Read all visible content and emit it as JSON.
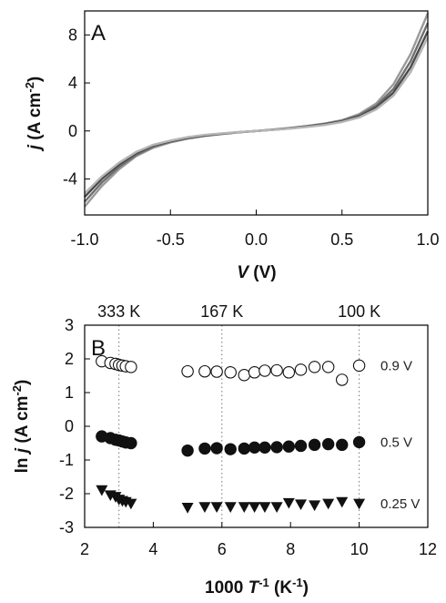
{
  "chart_data": [
    {
      "type": "line",
      "panel_label": "A",
      "xlabel_italic": "V",
      "xlabel_rest": " (V)",
      "ylabel_italic": "j",
      "ylabel_rest": " (A cm",
      "ylabel_sup": "-2",
      "ylabel_close": ")",
      "xlim": [
        -1.0,
        1.0
      ],
      "ylim": [
        -7,
        10
      ],
      "xticks": [
        -1.0,
        -0.5,
        0.0,
        0.5,
        1.0
      ],
      "xtick_labels": [
        "-1.0",
        "-0.5",
        "0.0",
        "0.5",
        "1.0"
      ],
      "yticks": [
        -4,
        0,
        4,
        8
      ],
      "ytick_labels": [
        "-4",
        "0",
        "4",
        "8"
      ],
      "grid": false,
      "x": [
        -1.0,
        -0.9,
        -0.8,
        -0.7,
        -0.6,
        -0.5,
        -0.4,
        -0.3,
        -0.2,
        -0.1,
        0.0,
        0.1,
        0.2,
        0.3,
        0.4,
        0.5,
        0.6,
        0.7,
        0.8,
        0.9,
        1.0
      ],
      "series": [
        {
          "values": [
            -6.3,
            -4.6,
            -3.2,
            -2.1,
            -1.4,
            -0.95,
            -0.65,
            -0.42,
            -0.26,
            -0.12,
            0.0,
            0.12,
            0.26,
            0.42,
            0.62,
            0.9,
            1.4,
            2.3,
            3.9,
            6.4,
            9.8
          ]
        },
        {
          "values": [
            -5.9,
            -4.3,
            -3.0,
            -2.0,
            -1.3,
            -0.9,
            -0.6,
            -0.4,
            -0.24,
            -0.11,
            0.0,
            0.11,
            0.24,
            0.4,
            0.58,
            0.85,
            1.3,
            2.1,
            3.5,
            5.8,
            9.0
          ]
        },
        {
          "values": [
            -5.5,
            -4.0,
            -2.8,
            -1.85,
            -1.2,
            -0.85,
            -0.56,
            -0.36,
            -0.22,
            -0.1,
            0.0,
            0.1,
            0.22,
            0.37,
            0.54,
            0.8,
            1.2,
            1.95,
            3.2,
            5.3,
            8.3
          ]
        },
        {
          "values": [
            -5.2,
            -3.8,
            -2.65,
            -1.75,
            -1.15,
            -0.8,
            -0.52,
            -0.33,
            -0.2,
            -0.09,
            0.0,
            0.09,
            0.2,
            0.34,
            0.5,
            0.75,
            1.12,
            1.8,
            2.95,
            4.9,
            7.8
          ]
        }
      ]
    },
    {
      "type": "scatter",
      "panel_label": "B",
      "xlabel": "1000 ",
      "xlabel_italic": "T",
      "xlabel_sup1": "-1",
      "xlabel_rest": " (K",
      "xlabel_sup2": "-1",
      "xlabel_close": ")",
      "ylabel": "ln ",
      "ylabel_italic": "j",
      "ylabel_rest": " (A cm",
      "ylabel_sup": "-2",
      "ylabel_close": ")",
      "xlim": [
        2,
        12
      ],
      "ylim": [
        -3,
        3
      ],
      "xticks": [
        2,
        4,
        6,
        8,
        10,
        12
      ],
      "xtick_labels": [
        "2",
        "4",
        "6",
        "8",
        "10",
        "12"
      ],
      "yticks": [
        -3,
        -2,
        -1,
        0,
        1,
        2,
        3
      ],
      "ytick_labels": [
        "-3",
        "-2",
        "-1",
        "0",
        "1",
        "2",
        "3"
      ],
      "grid": false,
      "reference_lines": [
        {
          "x": 3.0,
          "label": "333 K"
        },
        {
          "x": 6.0,
          "label": "167 K"
        },
        {
          "x": 10.0,
          "label": "100 K"
        }
      ],
      "series": [
        {
          "name": "0.9 V",
          "marker": "circle-open",
          "x": [
            2.5,
            2.75,
            2.9,
            3.0,
            3.1,
            3.2,
            3.35,
            5.0,
            5.5,
            5.85,
            6.25,
            6.65,
            6.95,
            7.25,
            7.6,
            7.95,
            8.3,
            8.7,
            9.1,
            9.5,
            10.0
          ],
          "y": [
            1.93,
            1.88,
            1.85,
            1.82,
            1.8,
            1.78,
            1.76,
            1.63,
            1.63,
            1.62,
            1.6,
            1.52,
            1.6,
            1.65,
            1.66,
            1.6,
            1.68,
            1.76,
            1.76,
            1.38,
            1.8
          ]
        },
        {
          "name": "0.5 V",
          "marker": "circle-filled",
          "x": [
            2.5,
            2.75,
            2.9,
            3.0,
            3.1,
            3.2,
            3.35,
            5.0,
            5.5,
            5.85,
            6.25,
            6.65,
            6.95,
            7.25,
            7.6,
            7.95,
            8.3,
            8.7,
            9.1,
            9.5,
            10.0
          ],
          "y": [
            -0.3,
            -0.35,
            -0.4,
            -0.42,
            -0.45,
            -0.48,
            -0.5,
            -0.72,
            -0.66,
            -0.65,
            -0.68,
            -0.66,
            -0.63,
            -0.63,
            -0.62,
            -0.6,
            -0.58,
            -0.55,
            -0.53,
            -0.55,
            -0.47
          ]
        },
        {
          "name": "0.25 V",
          "marker": "triangle-down-filled",
          "x": [
            2.5,
            2.75,
            2.9,
            3.0,
            3.1,
            3.2,
            3.35,
            5.0,
            5.5,
            5.85,
            6.25,
            6.65,
            6.95,
            7.25,
            7.6,
            7.95,
            8.3,
            8.7,
            9.1,
            9.5,
            10.0
          ],
          "y": [
            -1.9,
            -2.05,
            -2.1,
            -2.18,
            -2.22,
            -2.25,
            -2.3,
            -2.42,
            -2.4,
            -2.4,
            -2.4,
            -2.4,
            -2.4,
            -2.4,
            -2.4,
            -2.28,
            -2.32,
            -2.35,
            -2.3,
            -2.25,
            -2.3
          ]
        }
      ]
    }
  ]
}
